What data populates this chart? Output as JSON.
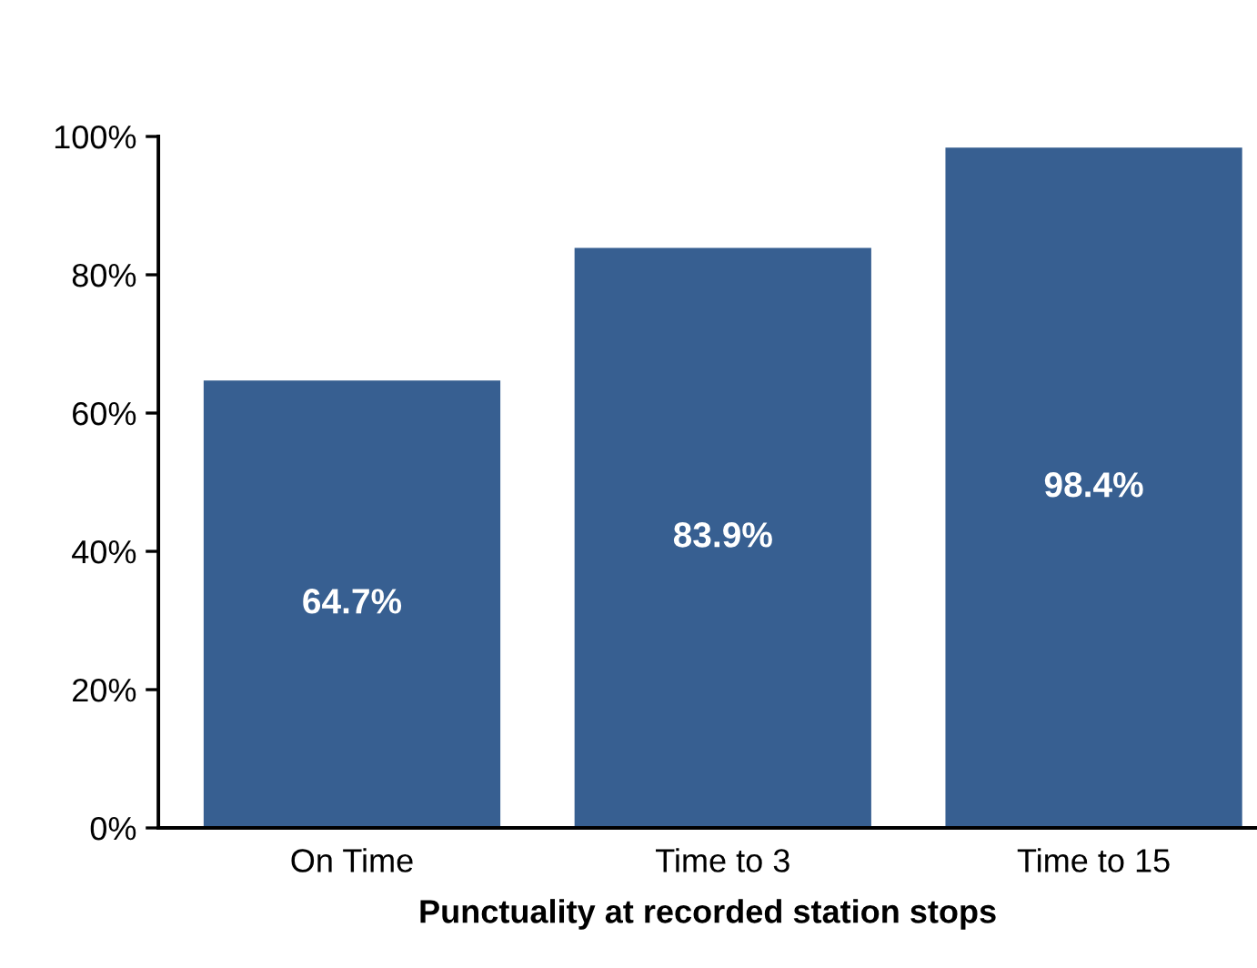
{
  "chart_data": {
    "type": "bar",
    "xlabel": "Punctuality at recorded station stops",
    "categories": [
      "On Time",
      "Time to 3",
      "Time to 15"
    ],
    "values": [
      64.7,
      83.9,
      98.4
    ],
    "value_labels": [
      "64.7%",
      "83.9%",
      "98.4%"
    ],
    "color": "#375f91",
    "ylim": [
      0,
      100
    ],
    "yticks": [
      {
        "value": 0,
        "label": "0%"
      },
      {
        "value": 20,
        "label": "20%"
      },
      {
        "value": 40,
        "label": "40%"
      },
      {
        "value": 60,
        "label": "60%"
      },
      {
        "value": 80,
        "label": "80%"
      },
      {
        "value": 100,
        "label": "100%"
      }
    ],
    "grid": false,
    "legend": false
  }
}
